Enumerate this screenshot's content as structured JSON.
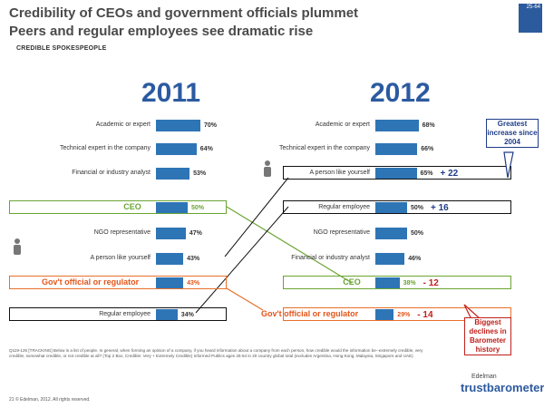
{
  "header": {
    "title_line1": "Credibility of CEOs and government officials plummet",
    "title_line2": "Peers and regular employees see dramatic rise",
    "subtitle": "CREDIBLE SPOKESPEOPLE",
    "badge": "25-64"
  },
  "colors": {
    "bar": "#2e75b6",
    "ceo": "#6aa533",
    "government": "#e8702a",
    "title_year": "#2c5aa0"
  },
  "chart_data": [
    {
      "type": "bar",
      "title": "2011",
      "categories": [
        "Academic or expert",
        "Technical expert in the company",
        "Financial or industry analyst",
        "CEO",
        "NGO representative",
        "A person like yourself",
        "Government official or regulator",
        "Regular employee"
      ],
      "values": [
        70,
        64,
        53,
        50,
        47,
        43,
        43,
        34
      ],
      "value_labels": [
        "70%",
        "64%",
        "53%",
        "50%",
        "47%",
        "43%",
        "43%",
        "34%"
      ],
      "xlim": [
        0,
        100
      ]
    },
    {
      "type": "bar",
      "title": "2012",
      "categories": [
        "Academic or expert",
        "Technical expert in the company",
        "A person like yourself",
        "Regular employee",
        "NGO representative",
        "Financial or industry analyst",
        "CEO",
        "Government official or regulator"
      ],
      "values": [
        68,
        66,
        65,
        50,
        50,
        46,
        38,
        29
      ],
      "value_labels": [
        "68%",
        "66%",
        "65%",
        "50%",
        "50%",
        "46%",
        "38%",
        "29%"
      ],
      "changes": [
        "",
        "",
        "+ 22",
        "+ 16",
        "",
        "",
        "- 12",
        "- 14"
      ],
      "xlim": [
        0,
        100
      ]
    }
  ],
  "labels": {
    "ceo": "CEO",
    "government": "Gov't official or regulator"
  },
  "callouts": {
    "greatest": "Greatest increase since 2004",
    "biggest": "Biggest declines in Barometer history"
  },
  "footnote": "Q119-126 [TRACKING] Below is a list of people. In general, when forming an opinion of a company, if you heard information about a company from each person, how credible would the information be--extremely credible, very credible, somewhat credible, or not credible at all? (Top 2 Box, Credible: Very + Extremely Credible) Informed Publics ages 25-64 in 20 country global total (excludes Argentina, Hong Kong, Malaysia, Singapore and UAE)",
  "footer": "21   © Edelman, 2012. All rights reserved.",
  "brand": {
    "top": "Edelman",
    "bottom": "trustbarometer"
  }
}
